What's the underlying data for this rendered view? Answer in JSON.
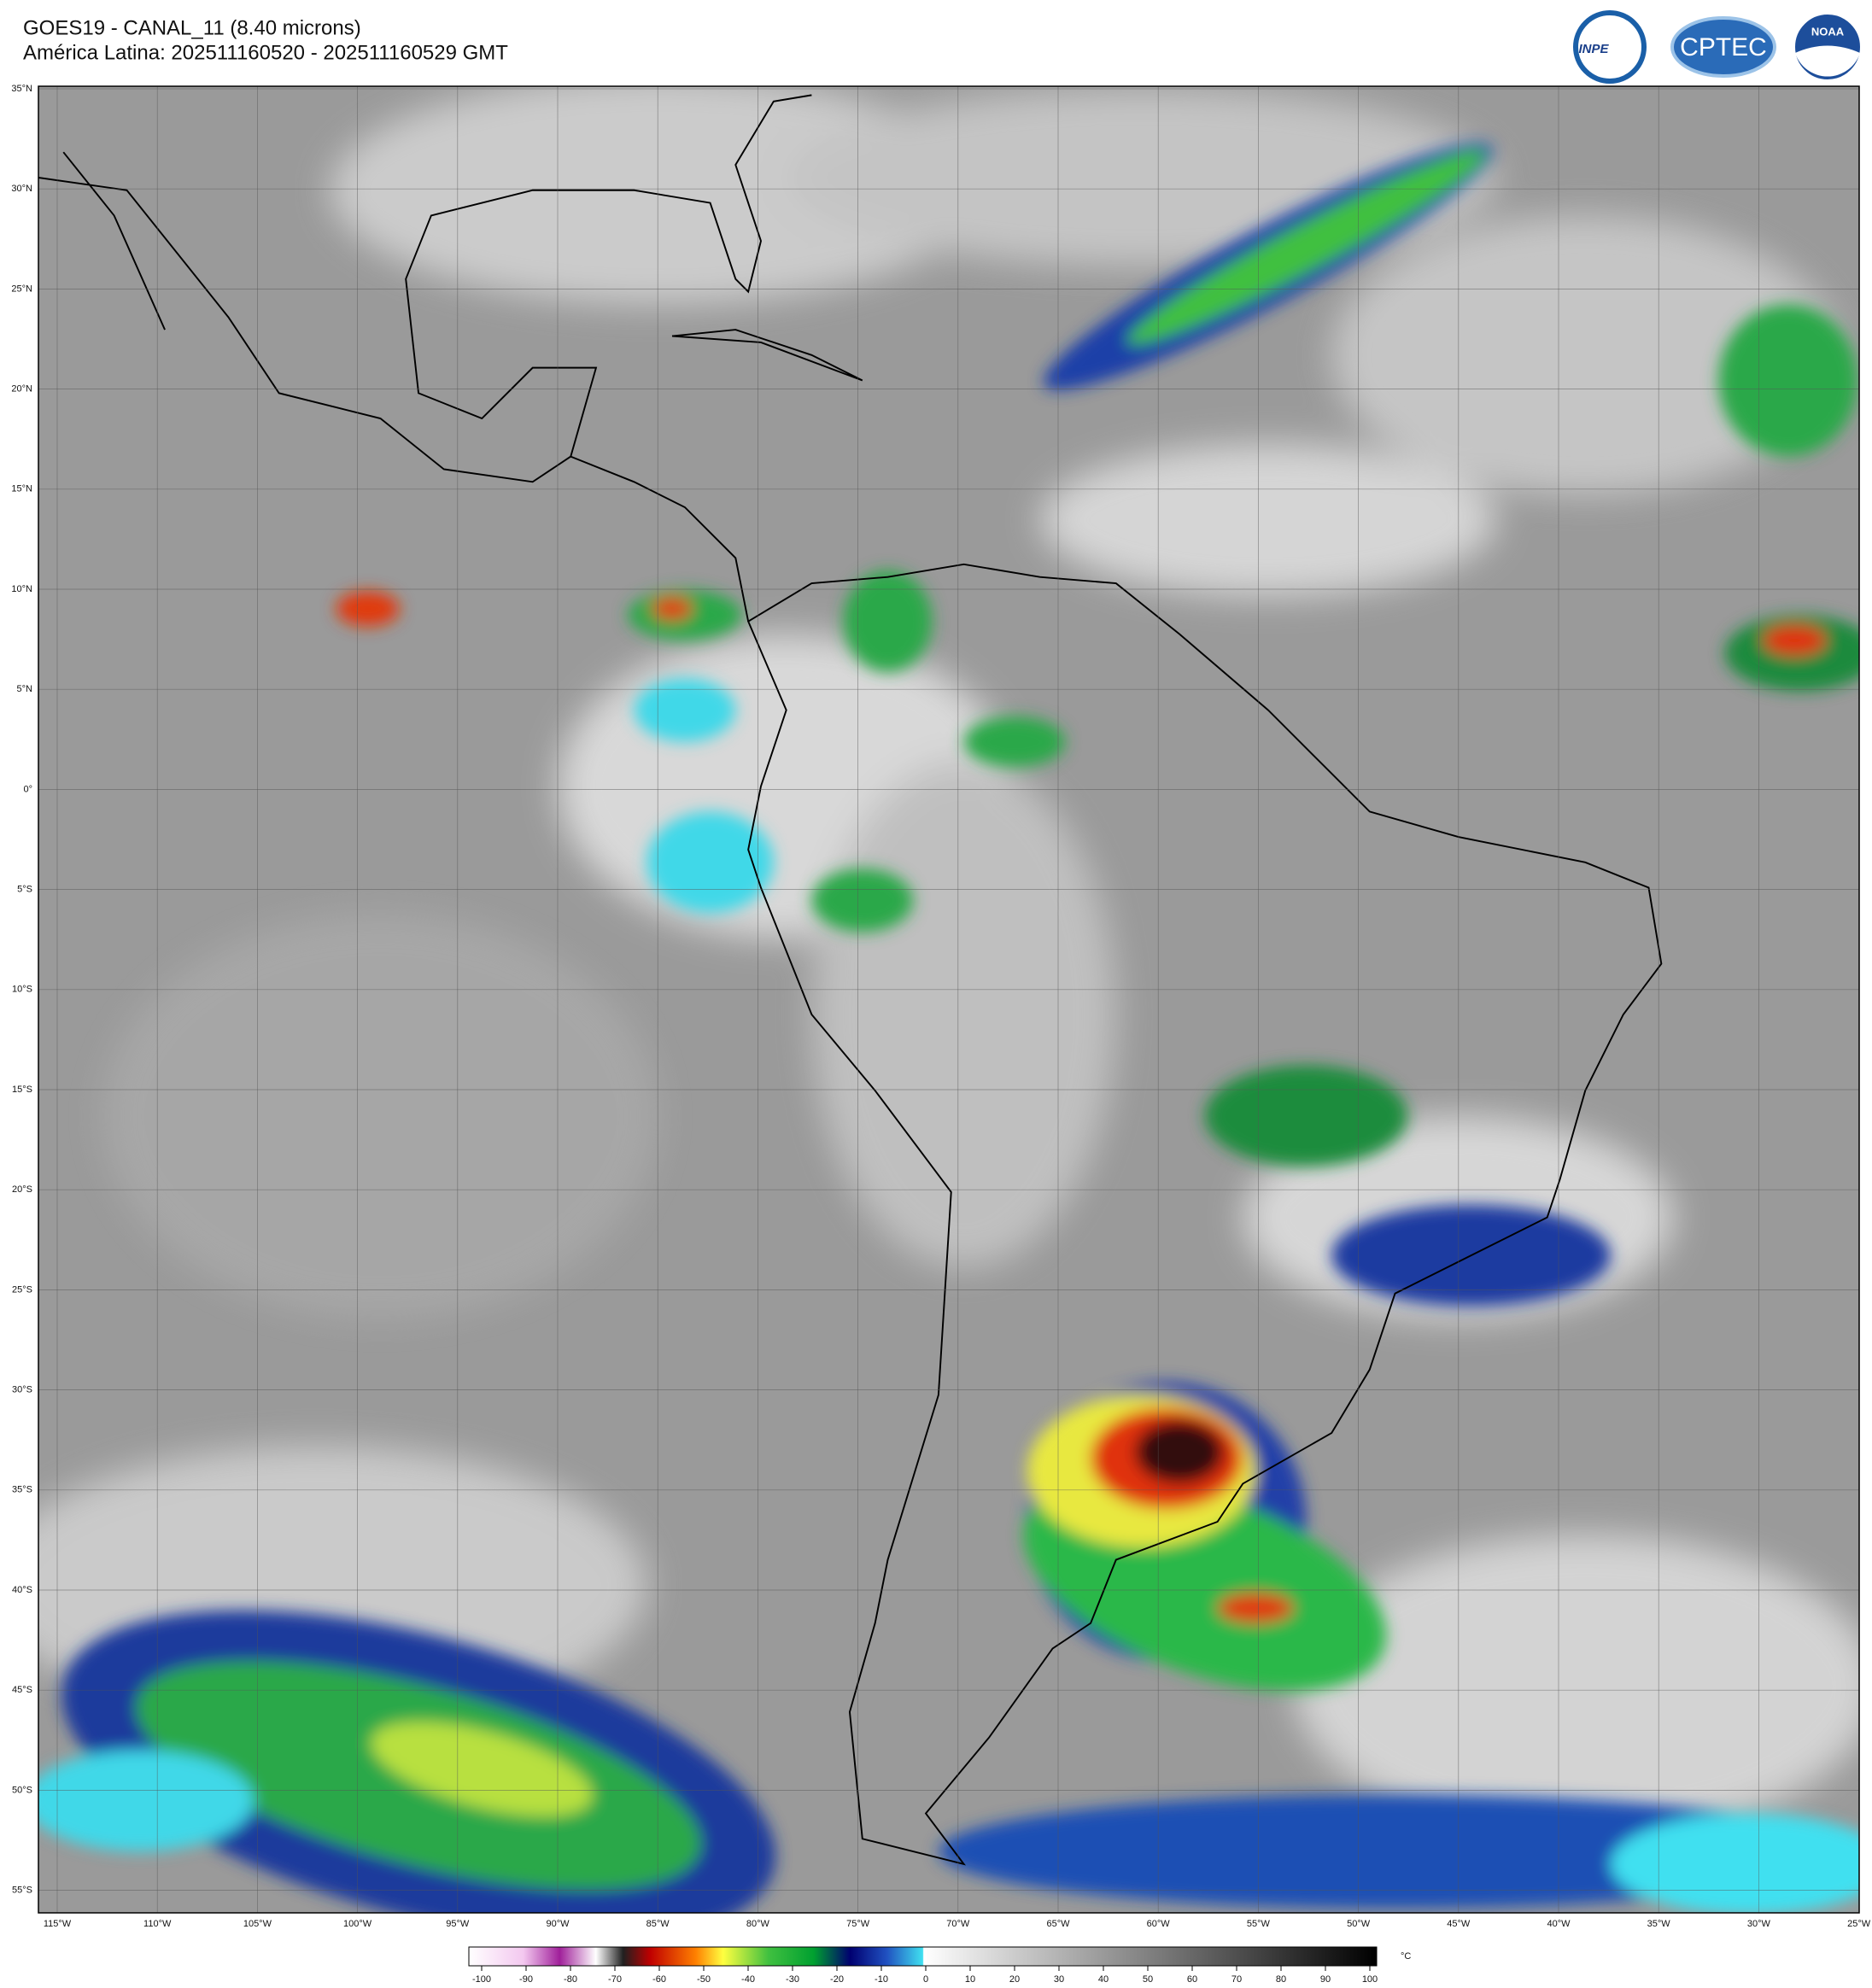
{
  "header": {
    "title": "GOES19 - CANAL_11 (8.40 microns)",
    "subtitle": "América Latina: 202511160520 - 202511160529 GMT"
  },
  "logos": [
    "INPE",
    "CPTEC",
    "NOAA"
  ],
  "map": {
    "lat_labels": [
      "35°N",
      "30°N",
      "25°N",
      "20°N",
      "15°N",
      "10°N",
      "5°N",
      "0°",
      "5°S",
      "10°S",
      "15°S",
      "20°S",
      "25°S",
      "30°S",
      "35°S",
      "40°S",
      "45°S",
      "50°S",
      "55°S"
    ],
    "lon_labels": [
      "115°W",
      "110°W",
      "105°W",
      "100°W",
      "95°W",
      "90°W",
      "85°W",
      "80°W",
      "75°W",
      "70°W",
      "65°W",
      "60°W",
      "55°W",
      "50°W",
      "45°W",
      "40°W",
      "35°W",
      "30°W",
      "25°W"
    ]
  },
  "colorbar": {
    "ticks": [
      -100,
      -90,
      -80,
      -70,
      -60,
      -50,
      -40,
      -30,
      -20,
      -10,
      0,
      10,
      20,
      30,
      40,
      50,
      60,
      70,
      80,
      90,
      100
    ],
    "unit": "°C"
  }
}
